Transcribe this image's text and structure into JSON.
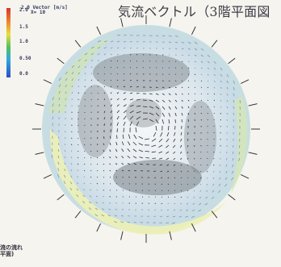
{
  "title": "気流ベクトル（3階平面図",
  "scale": {
    "title_line1": "2.0 Vector [m/s]",
    "title_line2": "X= 10",
    "ticks": [
      "2.0",
      "1.5",
      "1.0",
      "0.50",
      "0.0"
    ],
    "colors": [
      "#d8322b",
      "#e9de3e",
      "#52c25d",
      "#31a8df",
      "#2a4fc6"
    ]
  },
  "side_note": {
    "line1": "流の流れ",
    "line2": "平面)"
  }
}
